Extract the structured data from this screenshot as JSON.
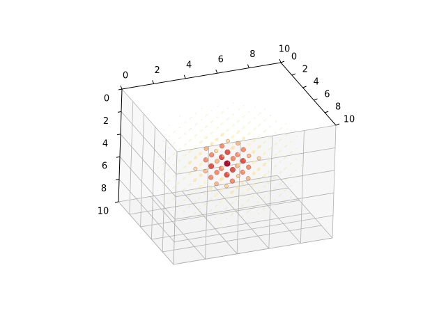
{
  "chart_data": {
    "type": "scatter3d",
    "title": "",
    "x": {
      "label": "",
      "range": [
        0,
        10
      ],
      "ticks": [
        0,
        2,
        4,
        6,
        8,
        10
      ]
    },
    "y": {
      "label": "",
      "range": [
        0,
        10
      ],
      "ticks": [
        0,
        2,
        4,
        6,
        8,
        10
      ]
    },
    "z": {
      "label": "",
      "range": [
        0,
        10
      ],
      "ticks": [
        0,
        2,
        4,
        6,
        8,
        10
      ],
      "inverted": true
    },
    "grid": true,
    "marker": "sphere",
    "grid_points": {
      "start": 0,
      "end": 10,
      "step": 1
    },
    "value_function": "exp(-r^2/6) where r is distance from center (5,5,5)",
    "value_center": [
      5,
      5,
      5
    ],
    "colormap": [
      "#a50026",
      "#d73027",
      "#f46d43",
      "#fdae61",
      "#fee08b",
      "#ffffbf",
      "#d9ef8b",
      "#a6d96a"
    ],
    "colors": {
      "pane": "#f2f2f2",
      "grid": "#b0b0b0",
      "axis": "#000000"
    }
  }
}
